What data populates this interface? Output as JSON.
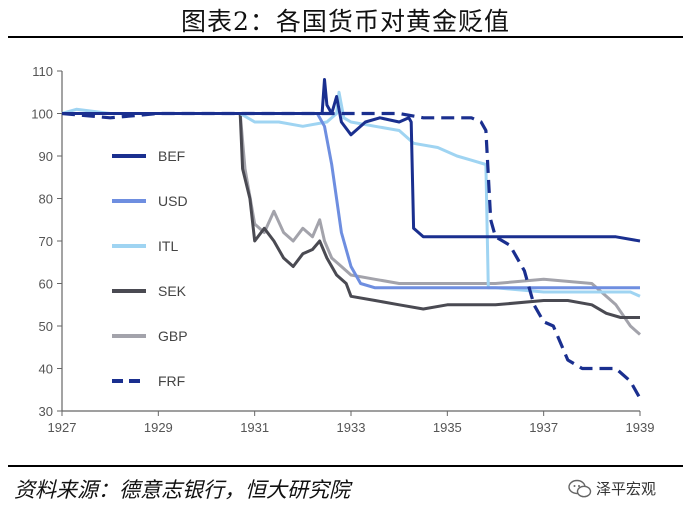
{
  "figure": {
    "title": "图表2：各国货币对黄金贬值",
    "source": "资料来源：德意志银行，恒大研究院",
    "watermark": "泽平宏观"
  },
  "colors": {
    "BEF": "#1a2f8f",
    "USD": "#6e8ee0",
    "ITL": "#9fd4f2",
    "SEK": "#4a4a52",
    "GBP": "#a3a3ab",
    "FRF": "#1a2f8f",
    "axis": "#666666"
  },
  "chart_data": {
    "type": "line",
    "title": "",
    "xlabel": "",
    "ylabel": "",
    "xlim": [
      1927,
      1939
    ],
    "ylim": [
      30,
      110
    ],
    "x_ticks": [
      "1927",
      "1929",
      "1931",
      "1933",
      "1935",
      "1937",
      "1939"
    ],
    "y_ticks": [
      "110",
      "100",
      "90",
      "80",
      "70",
      "60",
      "50",
      "40",
      "30"
    ],
    "grid": false,
    "legend_position": "left",
    "series": [
      {
        "name": "BEF",
        "style": "solid",
        "x": [
          1927.0,
          1928.0,
          1929.0,
          1930.0,
          1931.0,
          1932.0,
          1932.3,
          1932.4,
          1932.45,
          1932.5,
          1932.6,
          1932.7,
          1932.8,
          1933.0,
          1933.3,
          1933.6,
          1934.0,
          1934.2,
          1934.25,
          1934.3,
          1934.5,
          1935.0,
          1936.0,
          1937.0,
          1937.5,
          1938.0,
          1938.5,
          1939.0
        ],
        "y": [
          100,
          100,
          100,
          100,
          100,
          100,
          100,
          100,
          108,
          102,
          100,
          104,
          98,
          95,
          98,
          99,
          98,
          99,
          98,
          73,
          71,
          71,
          71,
          71,
          71,
          71,
          71,
          70
        ]
      },
      {
        "name": "USD",
        "style": "solid",
        "x": [
          1927.0,
          1928.0,
          1929.0,
          1930.0,
          1931.0,
          1932.0,
          1932.3,
          1932.45,
          1932.6,
          1932.8,
          1933.0,
          1933.2,
          1933.5,
          1934.0,
          1935.0,
          1936.0,
          1937.0,
          1938.0,
          1939.0
        ],
        "y": [
          100,
          100,
          100,
          100,
          100,
          100,
          100,
          97,
          88,
          72,
          64,
          60,
          59,
          59,
          59,
          59,
          59,
          59,
          59
        ]
      },
      {
        "name": "ITL",
        "style": "solid",
        "x": [
          1927.0,
          1927.3,
          1928.0,
          1929.0,
          1930.0,
          1930.7,
          1931.0,
          1931.5,
          1932.0,
          1932.5,
          1932.7,
          1932.75,
          1932.85,
          1933.0,
          1933.5,
          1934.0,
          1934.3,
          1934.8,
          1935.2,
          1935.5,
          1935.8,
          1935.85,
          1936.0,
          1937.0,
          1938.0,
          1938.8,
          1939.0
        ],
        "y": [
          100,
          101,
          100,
          100,
          100,
          100,
          98,
          98,
          97,
          98,
          100,
          105,
          99,
          98,
          97,
          96,
          93,
          92,
          90,
          89,
          88,
          59,
          59,
          58,
          58,
          58,
          57
        ]
      },
      {
        "name": "SEK",
        "style": "solid",
        "x": [
          1927.0,
          1928.0,
          1929.0,
          1930.0,
          1930.7,
          1930.75,
          1930.9,
          1931.0,
          1931.2,
          1931.4,
          1931.6,
          1931.8,
          1932.0,
          1932.2,
          1932.35,
          1932.5,
          1932.7,
          1932.9,
          1933.0,
          1933.5,
          1934.0,
          1934.5,
          1935.0,
          1936.0,
          1937.0,
          1937.5,
          1938.0,
          1938.3,
          1938.6,
          1939.0
        ],
        "y": [
          100,
          100,
          100,
          100,
          100,
          87,
          80,
          70,
          73,
          70,
          66,
          64,
          67,
          68,
          70,
          66,
          62,
          60,
          57,
          56,
          55,
          54,
          55,
          55,
          56,
          56,
          55,
          53,
          52,
          52
        ]
      },
      {
        "name": "GBP",
        "style": "solid",
        "x": [
          1927.0,
          1928.0,
          1929.0,
          1930.0,
          1930.7,
          1930.8,
          1931.0,
          1931.2,
          1931.4,
          1931.6,
          1931.8,
          1932.0,
          1932.2,
          1932.35,
          1932.45,
          1932.6,
          1932.8,
          1933.0,
          1933.5,
          1934.0,
          1935.0,
          1936.0,
          1937.0,
          1938.0,
          1938.5,
          1938.8,
          1939.0
        ],
        "y": [
          100,
          100,
          100,
          100,
          100,
          87,
          74,
          72,
          77,
          72,
          70,
          73,
          71,
          75,
          70,
          66,
          64,
          62,
          61,
          60,
          60,
          60,
          61,
          60,
          55,
          50,
          48
        ]
      },
      {
        "name": "FRF",
        "style": "dashed",
        "x": [
          1927.0,
          1928.0,
          1929.0,
          1930.0,
          1931.0,
          1932.0,
          1933.0,
          1934.0,
          1934.5,
          1935.0,
          1935.5,
          1935.7,
          1935.8,
          1935.9,
          1936.0,
          1936.3,
          1936.6,
          1936.8,
          1937.0,
          1937.2,
          1937.5,
          1937.8,
          1938.0,
          1938.5,
          1938.8,
          1939.0
        ],
        "y": [
          100,
          99,
          100,
          100,
          100,
          100,
          100,
          100,
          99,
          99,
          99,
          98,
          96,
          75,
          71,
          69,
          63,
          55,
          51,
          50,
          42,
          40,
          40,
          40,
          37,
          33
        ]
      }
    ]
  }
}
